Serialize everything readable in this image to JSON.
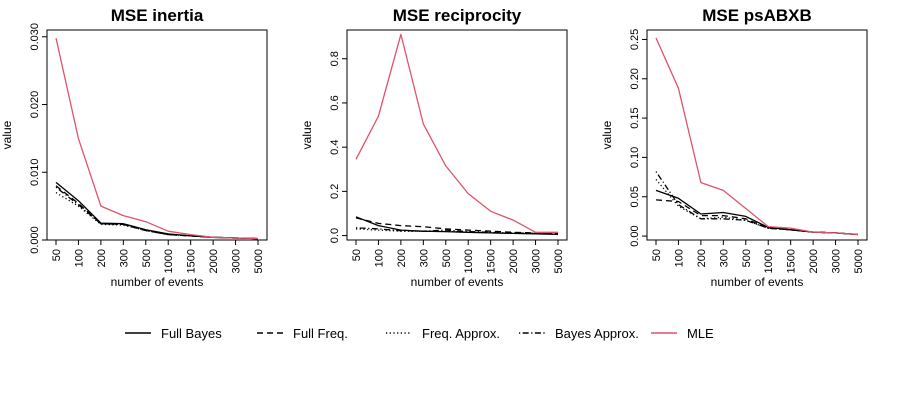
{
  "chart_data": [
    {
      "type": "line",
      "title": "MSE inertia",
      "xlabel": "number of events",
      "ylabel": "value",
      "categories": [
        "50",
        "100",
        "200",
        "300",
        "500",
        "1000",
        "1500",
        "2000",
        "3000",
        "5000"
      ],
      "ylim": [
        0,
        0.031
      ],
      "yticks": [
        "0.000",
        "0.010",
        "0.020",
        "0.030"
      ],
      "ytick_values": [
        0,
        0.01,
        0.02,
        0.03
      ],
      "series": [
        {
          "name": "Full Bayes",
          "values": [
            0.0085,
            0.0058,
            0.0025,
            0.0024,
            0.0015,
            0.0009,
            0.0006,
            0.0004,
            0.0003,
            0.0002
          ]
        },
        {
          "name": "Full Freq.",
          "values": [
            0.008,
            0.0054,
            0.0024,
            0.0023,
            0.0014,
            0.0008,
            0.0006,
            0.0004,
            0.0003,
            0.0002
          ]
        },
        {
          "name": "Freq. Approx.",
          "values": [
            0.007,
            0.005,
            0.0023,
            0.0022,
            0.0014,
            0.0008,
            0.0006,
            0.0004,
            0.0003,
            0.0002
          ]
        },
        {
          "name": "Bayes Approx.",
          "values": [
            0.0078,
            0.0052,
            0.0024,
            0.0023,
            0.0014,
            0.0008,
            0.0006,
            0.0004,
            0.0003,
            0.0002
          ]
        },
        {
          "name": "MLE",
          "values": [
            0.0298,
            0.015,
            0.005,
            0.0036,
            0.0027,
            0.0013,
            0.0008,
            0.0004,
            0.0003,
            0.0002
          ]
        }
      ]
    },
    {
      "type": "line",
      "title": "MSE reciprocity",
      "xlabel": "number of events",
      "ylabel": "value",
      "categories": [
        "50",
        "100",
        "200",
        "300",
        "500",
        "1000",
        "1500",
        "2000",
        "3000",
        "5000"
      ],
      "ylim": [
        -0.02,
        0.93
      ],
      "yticks": [
        "0.0",
        "0.2",
        "0.4",
        "0.6",
        "0.8"
      ],
      "ytick_values": [
        0,
        0.2,
        0.4,
        0.6,
        0.8
      ],
      "series": [
        {
          "name": "Full Bayes",
          "values": [
            0.085,
            0.045,
            0.025,
            0.02,
            0.018,
            0.015,
            0.012,
            0.01,
            0.008,
            0.006
          ]
        },
        {
          "name": "Full Freq.",
          "values": [
            0.08,
            0.055,
            0.045,
            0.04,
            0.03,
            0.025,
            0.02,
            0.015,
            0.012,
            0.01
          ]
        },
        {
          "name": "Freq. Approx.",
          "values": [
            0.03,
            0.025,
            0.02,
            0.02,
            0.018,
            0.015,
            0.012,
            0.01,
            0.008,
            0.006
          ]
        },
        {
          "name": "Bayes Approx.",
          "values": [
            0.035,
            0.03,
            0.022,
            0.02,
            0.025,
            0.018,
            0.015,
            0.012,
            0.01,
            0.008
          ]
        },
        {
          "name": "MLE",
          "values": [
            0.345,
            0.54,
            0.91,
            0.505,
            0.315,
            0.19,
            0.11,
            0.07,
            0.015,
            0.015
          ]
        }
      ]
    },
    {
      "type": "line",
      "title": "MSE psABXB",
      "xlabel": "number of events",
      "ylabel": "value",
      "categories": [
        "50",
        "100",
        "200",
        "300",
        "500",
        "1000",
        "1500",
        "2000",
        "3000",
        "5000"
      ],
      "ylim": [
        -0.005,
        0.262
      ],
      "yticks": [
        "0.00",
        "0.05",
        "0.10",
        "0.15",
        "0.20",
        "0.25"
      ],
      "ytick_values": [
        0,
        0.05,
        0.1,
        0.15,
        0.2,
        0.25
      ],
      "series": [
        {
          "name": "Full Bayes",
          "values": [
            0.058,
            0.048,
            0.028,
            0.03,
            0.025,
            0.011,
            0.008,
            0.005,
            0.004,
            0.002
          ]
        },
        {
          "name": "Full Freq.",
          "values": [
            0.046,
            0.044,
            0.026,
            0.026,
            0.022,
            0.01,
            0.008,
            0.005,
            0.004,
            0.002
          ]
        },
        {
          "name": "Freq. Approx.",
          "values": [
            0.072,
            0.038,
            0.022,
            0.024,
            0.02,
            0.01,
            0.008,
            0.005,
            0.004,
            0.002
          ]
        },
        {
          "name": "Bayes Approx.",
          "values": [
            0.082,
            0.04,
            0.022,
            0.022,
            0.02,
            0.01,
            0.008,
            0.005,
            0.004,
            0.002
          ]
        },
        {
          "name": "MLE",
          "values": [
            0.252,
            0.188,
            0.068,
            0.058,
            0.035,
            0.012,
            0.01,
            0.005,
            0.004,
            0.002
          ]
        }
      ]
    }
  ],
  "legend": [
    {
      "label": "Full Bayes",
      "color": "#000000",
      "dash": "solid"
    },
    {
      "label": "Full Freq.",
      "color": "#000000",
      "dash": "dashed"
    },
    {
      "label": "Freq. Approx.",
      "color": "#000000",
      "dash": "dotted"
    },
    {
      "label": "Bayes Approx.",
      "color": "#000000",
      "dash": "dotdash"
    },
    {
      "label": "MLE",
      "color": "#DF536B",
      "dash": "solid"
    }
  ],
  "series_styles": {
    "Full Bayes": {
      "color": "#000000",
      "dash": "solid"
    },
    "Full Freq.": {
      "color": "#000000",
      "dash": "dashed"
    },
    "Freq. Approx.": {
      "color": "#000000",
      "dash": "dotted"
    },
    "Bayes Approx.": {
      "color": "#000000",
      "dash": "dotdash"
    },
    "MLE": {
      "color": "#DF536B",
      "dash": "solid"
    }
  }
}
